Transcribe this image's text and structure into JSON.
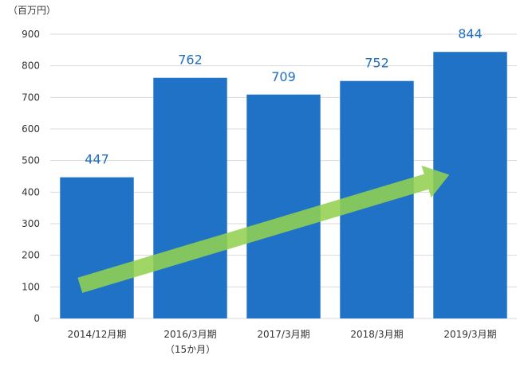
{
  "chart_data": {
    "type": "bar",
    "unit_label": "（百万円）",
    "categories": [
      "2014/12月期",
      "2016/3月期",
      "2017/3月期",
      "2018/3月期",
      "2019/3月期"
    ],
    "category_notes": [
      "",
      "（15か月）",
      "",
      "",
      ""
    ],
    "values": [
      447,
      762,
      709,
      752,
      844
    ],
    "data_labels": [
      "447",
      "762",
      "709",
      "752",
      "844"
    ],
    "ylim": [
      0,
      900
    ],
    "yticks": [
      0,
      100,
      200,
      300,
      400,
      500,
      600,
      700,
      800,
      900
    ],
    "grid": true,
    "legend": "none",
    "bar_color": "#1f72c6",
    "grid_color": "#d9d9d9",
    "label_color": "#1f6fbf",
    "annotation": {
      "type": "trend-arrow",
      "color": "#92d050",
      "from": {
        "category_index": 0,
        "value": 105
      },
      "to": {
        "category_index": 4,
        "value": 455
      }
    }
  }
}
